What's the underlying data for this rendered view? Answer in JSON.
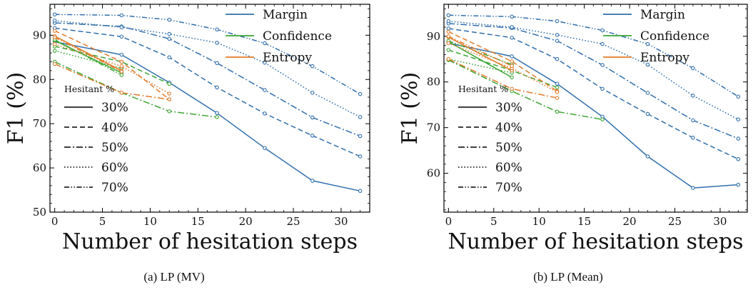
{
  "colors": {
    "Margin": "#2f6fad",
    "Confidence": "#3aa532",
    "Entropy": "#e07b2a"
  },
  "hesitant_title": "Hesitant %",
  "hesitant_styles": [
    {
      "label": "30%",
      "dash": "solid"
    },
    {
      "label": "40%",
      "dash": "dashed"
    },
    {
      "label": "50%",
      "dash": "dashdot"
    },
    {
      "label": "60%",
      "dash": "dotted"
    },
    {
      "label": "70%",
      "dash": "dashdotdot"
    }
  ],
  "chart_data": [
    {
      "type": "line",
      "caption": "(a) LP (MV)",
      "xlabel": "Number of hesitation steps",
      "ylabel": "F1 (%)",
      "xlim": [
        -0.5,
        33
      ],
      "ylim": [
        50,
        97
      ],
      "xticks": [
        0,
        5,
        10,
        15,
        20,
        25,
        30
      ],
      "yticks": [
        50,
        60,
        70,
        80,
        90
      ],
      "legend": [
        "Margin",
        "Confidence",
        "Entropy"
      ],
      "series": [
        {
          "method": "Margin",
          "hesitant": "30%",
          "x": [
            0,
            7,
            12,
            17,
            22,
            27,
            32
          ],
          "y": [
            88.5,
            85.6,
            79.3,
            72.4,
            64.5,
            57.1,
            54.8
          ]
        },
        {
          "method": "Margin",
          "hesitant": "40%",
          "x": [
            0,
            7,
            12,
            17,
            22,
            27,
            32
          ],
          "y": [
            91.6,
            89.7,
            85.0,
            78.2,
            72.3,
            67.3,
            62.6
          ]
        },
        {
          "method": "Margin",
          "hesitant": "50%",
          "x": [
            0,
            7,
            12,
            17,
            22,
            27,
            32
          ],
          "y": [
            92.8,
            92.0,
            89.2,
            83.7,
            77.6,
            71.4,
            67.2
          ]
        },
        {
          "method": "Margin",
          "hesitant": "60%",
          "x": [
            0,
            7,
            12,
            17,
            22,
            27,
            32
          ],
          "y": [
            93.3,
            91.8,
            90.3,
            88.3,
            83.8,
            77.0,
            71.5
          ]
        },
        {
          "method": "Margin",
          "hesitant": "70%",
          "x": [
            0,
            7,
            12,
            17,
            22,
            27,
            32
          ],
          "y": [
            94.7,
            94.5,
            93.5,
            91.3,
            88.2,
            83.0,
            76.7
          ]
        },
        {
          "method": "Confidence",
          "hesitant": "30%",
          "x": [
            0,
            7
          ],
          "y": [
            88.8,
            81.5
          ]
        },
        {
          "method": "Confidence",
          "hesitant": "40%",
          "x": [
            0,
            7,
            12
          ],
          "y": [
            87.5,
            84.0,
            79.0
          ]
        },
        {
          "method": "Confidence",
          "hesitant": "50%",
          "x": [
            0,
            7,
            12,
            17
          ],
          "y": [
            84.0,
            77.0,
            72.8,
            71.5
          ]
        },
        {
          "method": "Confidence",
          "hesitant": "60%",
          "x": [
            0,
            7
          ],
          "y": [
            86.5,
            82.5
          ]
        },
        {
          "method": "Confidence",
          "hesitant": "70%",
          "x": [
            0,
            7
          ],
          "y": [
            89.0,
            81.0
          ]
        },
        {
          "method": "Entropy",
          "hesitant": "30%",
          "x": [
            0,
            7
          ],
          "y": [
            89.8,
            82.0
          ]
        },
        {
          "method": "Entropy",
          "hesitant": "40%",
          "x": [
            0,
            7,
            12
          ],
          "y": [
            91.0,
            84.0,
            75.5
          ]
        },
        {
          "method": "Entropy",
          "hesitant": "50%",
          "x": [
            0,
            7,
            12
          ],
          "y": [
            83.5,
            77.0,
            75.5
          ]
        },
        {
          "method": "Entropy",
          "hesitant": "60%",
          "x": [
            0,
            7,
            12
          ],
          "y": [
            88.0,
            83.0,
            76.8
          ]
        },
        {
          "method": "Entropy",
          "hesitant": "70%",
          "x": [
            0,
            7
          ],
          "y": [
            89.5,
            81.8
          ]
        }
      ]
    },
    {
      "type": "line",
      "caption": "(b) LP (Mean)",
      "xlabel": "Number of hesitation steps",
      "ylabel": "F1 (%)",
      "xlim": [
        -0.5,
        33
      ],
      "ylim": [
        51.5,
        97
      ],
      "xticks": [
        0,
        5,
        10,
        15,
        20,
        25,
        30
      ],
      "yticks": [
        60,
        70,
        80,
        90
      ],
      "legend": [
        "Margin",
        "Confidence",
        "Entropy"
      ],
      "series": [
        {
          "method": "Margin",
          "hesitant": "30%",
          "x": [
            0,
            7,
            12,
            17,
            22,
            27,
            32
          ],
          "y": [
            88.5,
            85.6,
            79.6,
            72.4,
            63.7,
            56.8,
            57.5
          ]
        },
        {
          "method": "Margin",
          "hesitant": "40%",
          "x": [
            0,
            7,
            12,
            17,
            22,
            27,
            32
          ],
          "y": [
            91.7,
            89.7,
            85.0,
            78.5,
            73.0,
            67.8,
            63.1
          ]
        },
        {
          "method": "Margin",
          "hesitant": "50%",
          "x": [
            0,
            7,
            12,
            17,
            22,
            27,
            32
          ],
          "y": [
            92.8,
            91.8,
            89.0,
            83.7,
            77.6,
            71.6,
            67.6
          ]
        },
        {
          "method": "Margin",
          "hesitant": "60%",
          "x": [
            0,
            7,
            12,
            17,
            22,
            27,
            32
          ],
          "y": [
            93.3,
            92.0,
            90.3,
            88.3,
            83.8,
            77.0,
            71.8
          ]
        },
        {
          "method": "Margin",
          "hesitant": "70%",
          "x": [
            0,
            7,
            12,
            17,
            22,
            27,
            32
          ],
          "y": [
            94.6,
            94.3,
            93.3,
            91.3,
            88.3,
            83.0,
            76.8
          ]
        },
        {
          "method": "Confidence",
          "hesitant": "30%",
          "x": [
            0,
            7
          ],
          "y": [
            88.8,
            81.0
          ]
        },
        {
          "method": "Confidence",
          "hesitant": "40%",
          "x": [
            0,
            7,
            12
          ],
          "y": [
            87.0,
            82.5,
            78.8
          ]
        },
        {
          "method": "Confidence",
          "hesitant": "50%",
          "x": [
            0,
            7,
            12,
            17
          ],
          "y": [
            84.8,
            78.0,
            73.5,
            71.8
          ]
        },
        {
          "method": "Confidence",
          "hesitant": "60%",
          "x": [
            0,
            7
          ],
          "y": [
            85.0,
            82.0
          ]
        },
        {
          "method": "Confidence",
          "hesitant": "70%",
          "x": [
            0,
            7
          ],
          "y": [
            89.0,
            83.8
          ]
        },
        {
          "method": "Entropy",
          "hesitant": "30%",
          "x": [
            0,
            7
          ],
          "y": [
            89.8,
            82.5
          ]
        },
        {
          "method": "Entropy",
          "hesitant": "40%",
          "x": [
            0,
            7,
            12
          ],
          "y": [
            91.0,
            84.5,
            78.0
          ]
        },
        {
          "method": "Entropy",
          "hesitant": "50%",
          "x": [
            0,
            7,
            12
          ],
          "y": [
            85.0,
            78.5,
            76.5
          ]
        },
        {
          "method": "Entropy",
          "hesitant": "60%",
          "x": [
            0,
            7,
            12
          ],
          "y": [
            88.5,
            83.0,
            77.8
          ]
        },
        {
          "method": "Entropy",
          "hesitant": "70%",
          "x": [
            0,
            7
          ],
          "y": [
            90.0,
            83.5
          ]
        }
      ]
    }
  ]
}
